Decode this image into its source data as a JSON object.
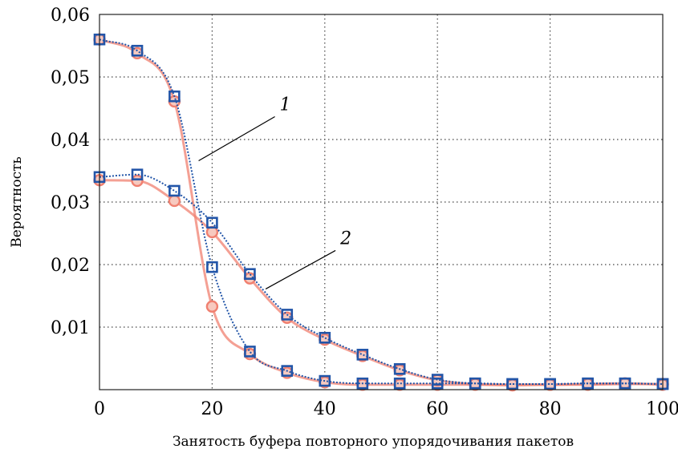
{
  "chart_data": {
    "type": "line",
    "title": "",
    "xlabel": "Занятость буфера повторного упорядочивания пакетов",
    "ylabel": "Вероятность",
    "xlim": [
      0,
      100
    ],
    "ylim": [
      0,
      0.06
    ],
    "grid": true,
    "x_ticks": [
      "0",
      "20",
      "40",
      "60",
      "80",
      "100"
    ],
    "y_ticks": [
      "0,01",
      "0,02",
      "0,03",
      "0,04",
      "0,05",
      "0,06"
    ],
    "colors": {
      "blue": "#2255a8",
      "pink": "#f08070",
      "pink_fill": "#f7c9bf",
      "grid": "#444444"
    },
    "markers": {
      "blue": "square",
      "pink": "circle"
    },
    "series": [
      {
        "curve": "1",
        "color": "blue",
        "x": [
          0,
          6.7,
          13.3,
          20,
          26.7,
          33.3,
          40,
          46.7,
          53.3,
          60,
          66.7,
          73.3,
          80,
          86.7,
          93.3,
          100
        ],
        "values": [
          0.056,
          0.0542,
          0.0469,
          0.0196,
          0.0061,
          0.003,
          0.0014,
          0.001,
          0.001,
          0.001,
          0.001,
          0.0009,
          0.0009,
          0.001,
          0.001,
          0.0009
        ]
      },
      {
        "curve": "1",
        "color": "pink",
        "x": [
          0,
          6.7,
          13.3,
          20,
          26.7,
          33.3,
          40,
          46.7,
          53.3,
          60,
          66.7,
          73.3,
          80,
          86.7,
          93.3,
          100
        ],
        "values": [
          0.056,
          0.0538,
          0.0461,
          0.0133,
          0.0057,
          0.0027,
          0.0012,
          0.0008,
          0.0008,
          0.0008,
          0.0008,
          0.0007,
          0.0008,
          0.0008,
          0.0009,
          0.0009
        ]
      },
      {
        "curve": "2",
        "color": "blue",
        "x": [
          0,
          6.7,
          13.3,
          20,
          26.7,
          33.3,
          40,
          46.7,
          53.3,
          60,
          66.7,
          73.3,
          80,
          86.7,
          93.3,
          100
        ],
        "values": [
          0.034,
          0.0344,
          0.0318,
          0.0267,
          0.0185,
          0.012,
          0.0083,
          0.0056,
          0.0033,
          0.0016,
          0.001,
          0.0009,
          0.0009,
          0.001,
          0.001,
          0.0009
        ]
      },
      {
        "curve": "2",
        "color": "pink",
        "x": [
          0,
          6.7,
          13.3,
          20,
          26.7,
          33.3,
          40,
          46.7,
          53.3,
          60,
          66.7,
          73.3,
          80,
          86.7,
          93.3,
          100
        ],
        "values": [
          0.0335,
          0.0334,
          0.0302,
          0.0252,
          0.0178,
          0.0115,
          0.008,
          0.0054,
          0.0031,
          0.0015,
          0.0009,
          0.0008,
          0.0008,
          0.0009,
          0.001,
          0.0008
        ]
      }
    ],
    "annotations": [
      {
        "text": "1",
        "points_to": "curve 1",
        "at_x": 17.6,
        "at_y": 0.0366
      },
      {
        "text": "2",
        "points_to": "curve 2",
        "at_x": 29.5,
        "at_y": 0.0161
      }
    ]
  }
}
